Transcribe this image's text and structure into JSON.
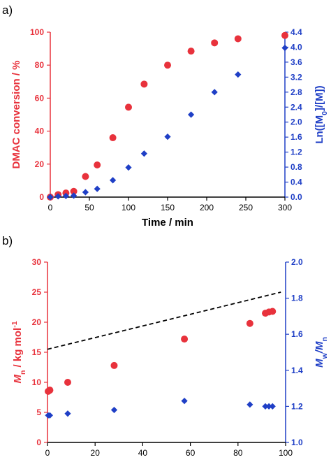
{
  "colors": {
    "red": "#e8323c",
    "blue": "#1f3fc6",
    "black": "#000000"
  },
  "chart_data": [
    {
      "panel_label": "a)",
      "type": "scatter",
      "title": "",
      "xlabel": "Time / min",
      "ylabel_left": "DMAC conversion / %",
      "ylabel_right_parts": [
        "Ln([M",
        "0",
        "]/[M])"
      ],
      "xlim": [
        0,
        300
      ],
      "ylim_left": [
        0,
        100
      ],
      "ylim_right": [
        0,
        4.4
      ],
      "x_ticks": [
        "0",
        "50",
        "100",
        "150",
        "200",
        "250",
        "300"
      ],
      "y_left_ticks": [
        "0",
        "20",
        "40",
        "60",
        "80",
        "100"
      ],
      "y_right_ticks": [
        "0.0",
        "0.4",
        "0.8",
        "1.2",
        "1.6",
        "2.0",
        "2.4",
        "2.8",
        "3.2",
        "3.6",
        "4.0",
        "4.4"
      ],
      "grid": false,
      "series": [
        {
          "axis": "left",
          "marker": "circle",
          "color": "#e8323c",
          "x": [
            0,
            10,
            20,
            30,
            45,
            60,
            80,
            100,
            120,
            150,
            180,
            210,
            240,
            300
          ],
          "y": [
            0,
            1.5,
            2.5,
            3.5,
            12.5,
            19.5,
            36,
            54.5,
            68.5,
            80,
            88.5,
            93.5,
            96,
            98
          ]
        },
        {
          "axis": "right",
          "marker": "diamond",
          "color": "#1f3fc6",
          "x": [
            0,
            10,
            20,
            30,
            45,
            60,
            80,
            100,
            120,
            150,
            180,
            210,
            240,
            300
          ],
          "y": [
            0,
            0.02,
            0.03,
            0.04,
            0.13,
            0.22,
            0.45,
            0.79,
            1.16,
            1.61,
            2.2,
            2.8,
            3.27,
            3.98
          ]
        }
      ]
    },
    {
      "panel_label": "b)",
      "type": "scatter",
      "title": "",
      "xlabel": "DMAC conversion / %",
      "ylabel_left_parts": [
        "M",
        "n",
        " / kg mol",
        "-1"
      ],
      "ylabel_right_parts": [
        "M",
        "w",
        "/M",
        "n"
      ],
      "xlim": [
        0,
        100
      ],
      "ylim_left": [
        0,
        30
      ],
      "ylim_right": [
        1.0,
        2.0
      ],
      "x_ticks": [
        "0",
        "20",
        "40",
        "60",
        "80",
        "100"
      ],
      "y_left_ticks": [
        "0",
        "5",
        "10",
        "15",
        "20",
        "25",
        "30"
      ],
      "y_right_ticks": [
        "1.0",
        "1.2",
        "1.4",
        "1.6",
        "1.8",
        "2.0"
      ],
      "grid": false,
      "series": [
        {
          "axis": "left",
          "marker": "circle",
          "color": "#e8323c",
          "x": [
            0.3,
            1,
            8.5,
            28,
            57.5,
            85,
            91.5,
            93,
            94.5
          ],
          "y": [
            8.5,
            8.7,
            10,
            12.8,
            17.2,
            19.8,
            21.5,
            21.7,
            21.8
          ]
        },
        {
          "axis": "right",
          "marker": "diamond",
          "color": "#1f3fc6",
          "x": [
            0.3,
            1,
            8.5,
            28,
            57.5,
            85,
            91.5,
            93,
            94.5
          ],
          "y": [
            1.15,
            1.15,
            1.16,
            1.18,
            1.23,
            1.21,
            1.2,
            1.2,
            1.2
          ]
        },
        {
          "axis": "left",
          "marker": "dashed-line",
          "color": "#000000",
          "x": [
            0,
            98
          ],
          "y": [
            15.5,
            25
          ]
        }
      ]
    }
  ]
}
